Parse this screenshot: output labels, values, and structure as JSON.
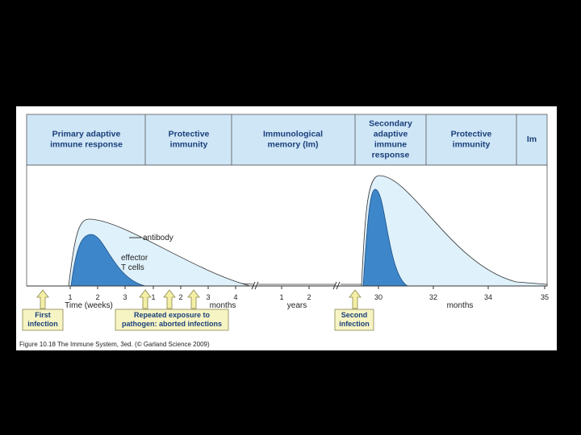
{
  "header": {
    "sections": [
      [
        "Primary adaptive",
        "immune response"
      ],
      [
        "Protective",
        "immunity"
      ],
      [
        "Immunological",
        "memory (Im)"
      ],
      [
        "Secondary",
        "adaptive",
        "immune",
        "response"
      ],
      [
        "Protective",
        "immunity"
      ],
      [
        "Im"
      ]
    ]
  },
  "curve_labels": {
    "antibody": "antibody",
    "effector": [
      "effector",
      "T cells"
    ]
  },
  "axis": {
    "weeks_ticks": [
      1,
      2,
      3
    ],
    "weeks_unit": "Time (weeks)",
    "months_ticks": [
      1,
      2,
      3,
      4
    ],
    "months_unit": "months",
    "years_ticks": [
      1,
      2
    ],
    "years_unit": "years",
    "late_months_ticks": [
      30,
      32,
      34,
      35
    ],
    "late_months_unit": "months"
  },
  "events": [
    [
      "First",
      "infection"
    ],
    [
      "Repeated exposure to",
      "pathogen: aborted infections"
    ],
    [
      "Second",
      "infection"
    ]
  ],
  "caption": "Figure 10.18 The Immune System, 3ed. (© Garland Science 2009)"
}
